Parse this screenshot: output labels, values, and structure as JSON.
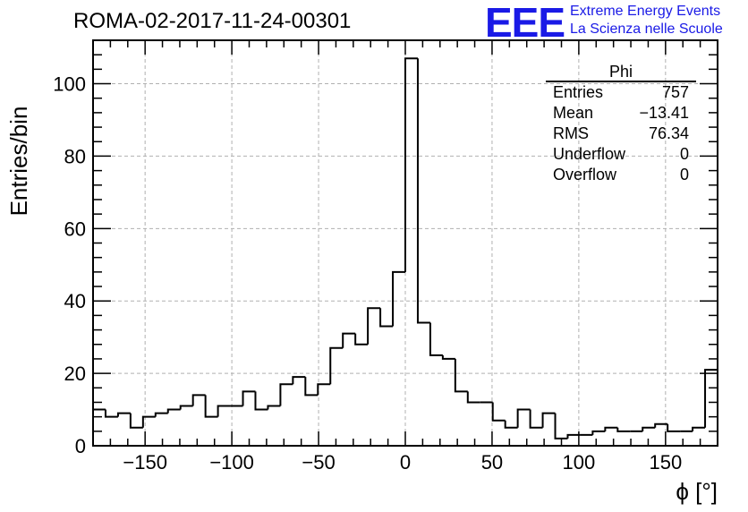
{
  "header": {
    "title": "ROMA-02-2017-11-24-00301",
    "logo_letters": "EEE",
    "logo_line1": "Extreme Energy Events",
    "logo_line2": "La Scienza nelle Scuole"
  },
  "stats_box": {
    "name": "Phi",
    "rows": [
      {
        "label": "Entries",
        "value": "757"
      },
      {
        "label": "Mean",
        "value": "−13.41"
      },
      {
        "label": "RMS",
        "value": "76.34"
      },
      {
        "label": "Underflow",
        "value": "0"
      },
      {
        "label": "Overflow",
        "value": "0"
      }
    ]
  },
  "colors": {
    "line": "#000000",
    "grid": "#b0b0b0",
    "logo": "#1a1ae6"
  },
  "chart_data": {
    "type": "histogram",
    "xlabel": "ϕ [°]",
    "ylabel": "Entries/bin",
    "xlim": [
      -180,
      180
    ],
    "ylim": [
      0,
      112
    ],
    "bin_width": 7.2,
    "grid": true,
    "x_ticks": [
      -150,
      -100,
      -50,
      0,
      50,
      100,
      150
    ],
    "x_tick_labels": [
      "−150",
      "−100",
      "−50",
      "0",
      "50",
      "100",
      "150"
    ],
    "y_ticks": [
      0,
      20,
      40,
      60,
      80,
      100
    ],
    "y_tick_labels": [
      "0",
      "20",
      "40",
      "60",
      "80",
      "100"
    ],
    "values": [
      10,
      8,
      9,
      5,
      8,
      9,
      10,
      11,
      14,
      8,
      11,
      11,
      15,
      10,
      11,
      17,
      19,
      14,
      17,
      27,
      31,
      28,
      38,
      33,
      48,
      107,
      34,
      25,
      24,
      15,
      12,
      12,
      7,
      5,
      10,
      5,
      9,
      2,
      3,
      3,
      4,
      5,
      4,
      4,
      5,
      6,
      4,
      4,
      5,
      21
    ]
  }
}
